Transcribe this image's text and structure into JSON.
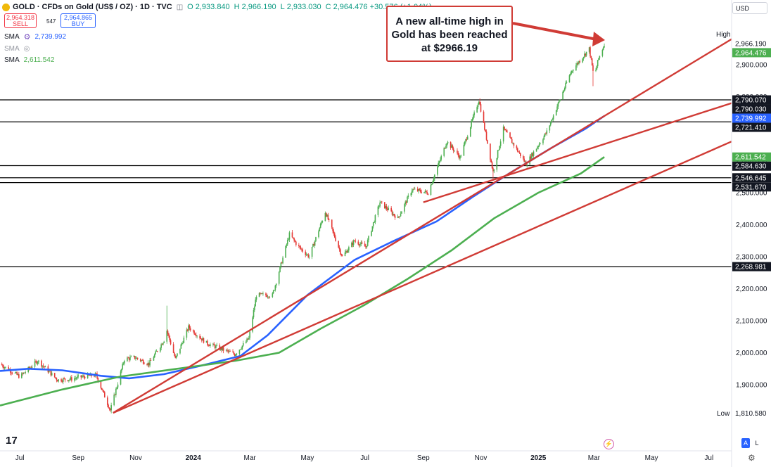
{
  "header": {
    "title": "GOLD · CFDs on Gold (US$ / OZ) · 1D · TVC",
    "ohlc": [
      {
        "k": "O",
        "v": "2,933.840"
      },
      {
        "k": "H",
        "v": "2,966.190"
      },
      {
        "k": "L",
        "v": "2,933.030"
      },
      {
        "k": "C",
        "v": "2,964.476 +30.576 (+1.04%)"
      }
    ]
  },
  "trade": {
    "sell_price": "2,964.318",
    "sell_label": "SELL",
    "spread": "547",
    "buy_price": "2,964.865",
    "buy_label": "BUY"
  },
  "indicators": [
    {
      "label": "SMA",
      "value": "2,739.992",
      "color": "#2962ff"
    },
    {
      "label": "SMA",
      "value": "",
      "color": "#9598a1"
    },
    {
      "label": "SMA",
      "value": "2,611.542",
      "color": "#4caf50"
    }
  ],
  "currency": "USD",
  "annotation": {
    "line1": "A new all-time high in",
    "line2": "Gold has been reached",
    "line3": "at $2966.19"
  },
  "high_label": "High",
  "low_label": "Low",
  "al_buttons": {
    "a": "A",
    "l": "L"
  },
  "chart_data": {
    "type": "line",
    "title": "",
    "xlabel": "",
    "ylabel": "",
    "ylim": [
      1760,
      3050
    ],
    "x_range": [
      "2023-06-10",
      "2025-07-25"
    ],
    "x_ticks": [
      {
        "date": "2023-07-01",
        "label": "Jul"
      },
      {
        "date": "2023-09-01",
        "label": "Sep"
      },
      {
        "date": "2023-11-01",
        "label": "Nov"
      },
      {
        "date": "2024-01-01",
        "label": "2024"
      },
      {
        "date": "2024-03-01",
        "label": "Mar"
      },
      {
        "date": "2024-05-01",
        "label": "May"
      },
      {
        "date": "2024-07-01",
        "label": "Jul"
      },
      {
        "date": "2024-09-01",
        "label": "Sep"
      },
      {
        "date": "2024-11-01",
        "label": "Nov"
      },
      {
        "date": "2025-01-01",
        "label": "2025"
      },
      {
        "date": "2025-03-01",
        "label": "Mar"
      },
      {
        "date": "2025-05-01",
        "label": "May"
      },
      {
        "date": "2025-07-01",
        "label": "Jul"
      }
    ],
    "y_ticks": [
      1900,
      2000,
      2100,
      2200,
      2300,
      2400,
      2500,
      2600,
      2700,
      2800,
      2900
    ],
    "y_tick_labels": [
      "1,900.000",
      "2,000.000",
      "2,100.000",
      "2,200.000",
      "2,300.000",
      "2,400.000",
      "2,500.000",
      "2,600.000",
      "2,700.000",
      "2,800.000",
      "2,900.000"
    ],
    "price": [
      [
        "2023-06-10",
        1965
      ],
      [
        "2023-07-01",
        1925
      ],
      [
        "2023-07-20",
        1975
      ],
      [
        "2023-08-10",
        1915
      ],
      [
        "2023-08-25",
        1918
      ],
      [
        "2023-09-05",
        1925
      ],
      [
        "2023-09-20",
        1930
      ],
      [
        "2023-10-05",
        1820
      ],
      [
        "2023-10-20",
        1980
      ],
      [
        "2023-10-31",
        1985
      ],
      [
        "2023-11-15",
        1965
      ],
      [
        "2023-12-01",
        2040
      ],
      [
        "2023-12-04",
        2070
      ],
      [
        "2023-12-13",
        1980
      ],
      [
        "2023-12-27",
        2080
      ],
      [
        "2024-01-15",
        2030
      ],
      [
        "2024-02-14",
        1995
      ],
      [
        "2024-02-29",
        2045
      ],
      [
        "2024-03-08",
        2180
      ],
      [
        "2024-03-25",
        2180
      ],
      [
        "2024-04-12",
        2370
      ],
      [
        "2024-04-22",
        2330
      ],
      [
        "2024-05-03",
        2300
      ],
      [
        "2024-05-20",
        2440
      ],
      [
        "2024-06-07",
        2300
      ],
      [
        "2024-06-20",
        2350
      ],
      [
        "2024-07-02",
        2330
      ],
      [
        "2024-07-17",
        2470
      ],
      [
        "2024-08-05",
        2420
      ],
      [
        "2024-08-20",
        2510
      ],
      [
        "2024-09-06",
        2500
      ],
      [
        "2024-09-26",
        2660
      ],
      [
        "2024-10-10",
        2610
      ],
      [
        "2024-10-30",
        2790
      ],
      [
        "2024-11-14",
        2565
      ],
      [
        "2024-11-25",
        2700
      ],
      [
        "2024-12-19",
        2590
      ],
      [
        "2025-01-10",
        2690
      ],
      [
        "2025-02-05",
        2880
      ],
      [
        "2025-02-24",
        2950
      ],
      [
        "2025-03-01",
        2860
      ],
      [
        "2025-03-06",
        2920
      ],
      [
        "2025-03-12",
        2964.476
      ]
    ],
    "highs": [
      [
        "2023-12-04",
        2147
      ],
      [
        "2024-10-31",
        2795
      ],
      [
        "2025-02-24",
        2955
      ],
      [
        "2025-03-12",
        2966.19
      ]
    ],
    "lows": [
      [
        "2023-10-06",
        1810.58
      ],
      [
        "2024-11-14",
        2537
      ],
      [
        "2025-02-28",
        2833
      ]
    ],
    "series": [
      {
        "color": "#2962ff",
        "values": [
          [
            "2023-06-10",
            1943
          ],
          [
            "2023-07-10",
            1950
          ],
          [
            "2023-08-15",
            1945
          ],
          [
            "2023-09-25",
            1928
          ],
          [
            "2023-10-25",
            1920
          ],
          [
            "2023-12-01",
            1933
          ],
          [
            "2024-01-10",
            1960
          ],
          [
            "2024-02-20",
            1990
          ],
          [
            "2024-03-20",
            2055
          ],
          [
            "2024-05-01",
            2180
          ],
          [
            "2024-06-20",
            2290
          ],
          [
            "2024-08-01",
            2350
          ],
          [
            "2024-09-15",
            2410
          ],
          [
            "2024-10-25",
            2490
          ],
          [
            "2024-12-01",
            2560
          ],
          [
            "2025-01-15",
            2640
          ],
          [
            "2025-02-20",
            2700
          ],
          [
            "2025-03-12",
            2739.992
          ]
        ]
      },
      {
        "color": "#4caf50",
        "values": [
          [
            "2023-06-10",
            1835
          ],
          [
            "2023-08-15",
            1885
          ],
          [
            "2023-10-15",
            1925
          ],
          [
            "2023-12-15",
            1950
          ],
          [
            "2024-02-15",
            1975
          ],
          [
            "2024-04-01",
            2000
          ],
          [
            "2024-05-15",
            2075
          ],
          [
            "2024-07-01",
            2150
          ],
          [
            "2024-08-15",
            2230
          ],
          [
            "2024-10-01",
            2320
          ],
          [
            "2024-11-15",
            2420
          ],
          [
            "2025-01-01",
            2500
          ],
          [
            "2025-02-15",
            2560
          ],
          [
            "2025-03-12",
            2611.542
          ]
        ]
      }
    ],
    "trendlines": [
      {
        "color": "#d03b35",
        "from": [
          "2023-10-08",
          1812
        ],
        "to": [
          "2025-07-25",
          2980
        ]
      },
      {
        "color": "#d03b35",
        "from": [
          "2023-10-08",
          1812
        ],
        "to": [
          "2025-07-25",
          2660
        ]
      },
      {
        "color": "#d03b35",
        "from": [
          "2024-09-01",
          2470
        ],
        "to": [
          "2025-07-25",
          2780
        ]
      }
    ],
    "hlines": [
      {
        "price": 2790.07,
        "label": "2,790.070"
      },
      {
        "price": 2721.41,
        "label": "2,721.410"
      },
      {
        "price": 2584.63,
        "label": "2,584.630"
      },
      {
        "price": 2546.645,
        "label": "2,546.645"
      },
      {
        "price": 2531.67,
        "label": "2,531.670"
      },
      {
        "price": 2268.981,
        "label": "2,268.981"
      }
    ],
    "axis_tags": [
      {
        "price": 2966.19,
        "label": "2,966.190",
        "style": "plain"
      },
      {
        "price": 2964.476,
        "label": "2,964.476",
        "style": "green"
      },
      {
        "price": 2790.07,
        "label": "2,790.070",
        "style": "black"
      },
      {
        "price": 2790.03,
        "label": "2,790.030",
        "style": "black"
      },
      {
        "price": 2739.992,
        "label": "2,739.992",
        "style": "blue"
      },
      {
        "price": 2721.41,
        "label": "2,721.410",
        "style": "black"
      },
      {
        "price": 2611.542,
        "label": "2,611.542",
        "style": "green"
      },
      {
        "price": 2584.63,
        "label": "2,584.630",
        "style": "black"
      },
      {
        "price": 2546.645,
        "label": "2,546.645",
        "style": "black"
      },
      {
        "price": 2531.67,
        "label": "2,531.670",
        "style": "black"
      },
      {
        "price": 2268.981,
        "label": "2,268.981",
        "style": "black"
      },
      {
        "price": 1810.58,
        "label": "1,810.580",
        "style": "plain"
      }
    ],
    "grid": false,
    "legend": "top-left"
  }
}
